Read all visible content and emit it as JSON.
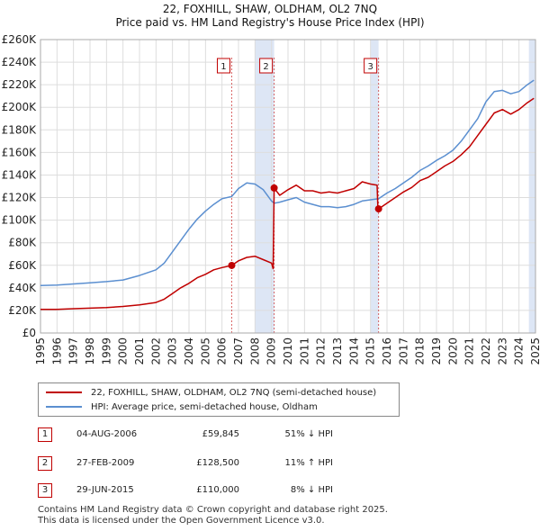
{
  "title_line1": "22, FOXHILL, SHAW, OLDHAM, OL2 7NQ",
  "title_line2": "Price paid vs. HM Land Registry's House Price Index (HPI)",
  "colors": {
    "red": "#c00000",
    "blue": "#5b8fd0",
    "shade": "#dde6f5",
    "grid": "#dddddd"
  },
  "chart_data": {
    "type": "line",
    "xlim": [
      1995,
      2025
    ],
    "ylim": [
      0,
      260000
    ],
    "y_ticks": [
      0,
      20000,
      40000,
      60000,
      80000,
      100000,
      120000,
      140000,
      160000,
      180000,
      200000,
      220000,
      240000,
      260000
    ],
    "y_tick_labels": [
      "£0",
      "£20K",
      "£40K",
      "£60K",
      "£80K",
      "£100K",
      "£120K",
      "£140K",
      "£160K",
      "£180K",
      "£200K",
      "£220K",
      "£240K",
      "£260K"
    ],
    "x_ticks": [
      "1995",
      "1996",
      "1997",
      "1998",
      "1999",
      "2000",
      "2001",
      "2002",
      "2003",
      "2004",
      "2005",
      "2006",
      "2007",
      "2008",
      "2009",
      "2010",
      "2011",
      "2012",
      "2013",
      "2014",
      "2015",
      "2016",
      "2017",
      "2018",
      "2019",
      "2020",
      "2021",
      "2022",
      "2023",
      "2024",
      "2025"
    ],
    "series": [
      {
        "name": "22, FOXHILL, SHAW, OLDHAM, OL2 7NQ (semi-detached house)",
        "color": "#c00000",
        "points": [
          [
            1995.0,
            21000
          ],
          [
            1996.0,
            21000
          ],
          [
            1997.0,
            21500
          ],
          [
            1998.0,
            22000
          ],
          [
            1999.0,
            22500
          ],
          [
            2000.0,
            23500
          ],
          [
            2001.0,
            25000
          ],
          [
            2002.0,
            27000
          ],
          [
            2002.5,
            30000
          ],
          [
            2003.0,
            35000
          ],
          [
            2003.5,
            40000
          ],
          [
            2004.0,
            44000
          ],
          [
            2004.5,
            49000
          ],
          [
            2005.0,
            52000
          ],
          [
            2005.5,
            56000
          ],
          [
            2006.0,
            58000
          ],
          [
            2006.59,
            59845
          ],
          [
            2007.0,
            64000
          ],
          [
            2007.5,
            67000
          ],
          [
            2008.0,
            68000
          ],
          [
            2008.5,
            65000
          ],
          [
            2009.0,
            62000
          ],
          [
            2009.1,
            57000
          ],
          [
            2009.16,
            128500
          ],
          [
            2009.5,
            122000
          ],
          [
            2010.0,
            127000
          ],
          [
            2010.5,
            131000
          ],
          [
            2011.0,
            126000
          ],
          [
            2011.5,
            126000
          ],
          [
            2012.0,
            124000
          ],
          [
            2012.5,
            125000
          ],
          [
            2013.0,
            124000
          ],
          [
            2013.5,
            126000
          ],
          [
            2014.0,
            128000
          ],
          [
            2014.5,
            134000
          ],
          [
            2015.0,
            132000
          ],
          [
            2015.4,
            131000
          ],
          [
            2015.45,
            110000
          ],
          [
            2015.49,
            110000
          ],
          [
            2016.0,
            115000
          ],
          [
            2016.5,
            120000
          ],
          [
            2017.0,
            125000
          ],
          [
            2017.5,
            129000
          ],
          [
            2018.0,
            135000
          ],
          [
            2018.5,
            138000
          ],
          [
            2019.0,
            143000
          ],
          [
            2019.5,
            148000
          ],
          [
            2020.0,
            152000
          ],
          [
            2020.5,
            158000
          ],
          [
            2021.0,
            165000
          ],
          [
            2021.5,
            175000
          ],
          [
            2022.0,
            185000
          ],
          [
            2022.5,
            195000
          ],
          [
            2023.0,
            198000
          ],
          [
            2023.5,
            194000
          ],
          [
            2024.0,
            198000
          ],
          [
            2024.5,
            204000
          ],
          [
            2024.9,
            208000
          ]
        ]
      },
      {
        "name": "HPI: Average price, semi-detached house, Oldham",
        "color": "#5b8fd0",
        "points": [
          [
            1995.0,
            42000
          ],
          [
            1996.0,
            42500
          ],
          [
            1997.0,
            43500
          ],
          [
            1998.0,
            44500
          ],
          [
            1999.0,
            45500
          ],
          [
            2000.0,
            47000
          ],
          [
            2001.0,
            51000
          ],
          [
            2002.0,
            56000
          ],
          [
            2002.5,
            62000
          ],
          [
            2003.0,
            72000
          ],
          [
            2003.5,
            82000
          ],
          [
            2004.0,
            92000
          ],
          [
            2004.5,
            101000
          ],
          [
            2005.0,
            108000
          ],
          [
            2005.5,
            114000
          ],
          [
            2006.0,
            119000
          ],
          [
            2006.59,
            121000
          ],
          [
            2007.0,
            128000
          ],
          [
            2007.5,
            133000
          ],
          [
            2008.0,
            132000
          ],
          [
            2008.5,
            127000
          ],
          [
            2009.0,
            117000
          ],
          [
            2009.16,
            115000
          ],
          [
            2009.5,
            116000
          ],
          [
            2010.0,
            118000
          ],
          [
            2010.5,
            120000
          ],
          [
            2011.0,
            116000
          ],
          [
            2011.5,
            114000
          ],
          [
            2012.0,
            112000
          ],
          [
            2012.5,
            112000
          ],
          [
            2013.0,
            111000
          ],
          [
            2013.5,
            112000
          ],
          [
            2014.0,
            114000
          ],
          [
            2014.5,
            117000
          ],
          [
            2015.0,
            118000
          ],
          [
            2015.49,
            119000
          ],
          [
            2016.0,
            124000
          ],
          [
            2016.5,
            128000
          ],
          [
            2017.0,
            133000
          ],
          [
            2017.5,
            138000
          ],
          [
            2018.0,
            144000
          ],
          [
            2018.5,
            148000
          ],
          [
            2019.0,
            153000
          ],
          [
            2019.5,
            157000
          ],
          [
            2020.0,
            162000
          ],
          [
            2020.5,
            170000
          ],
          [
            2021.0,
            180000
          ],
          [
            2021.5,
            190000
          ],
          [
            2022.0,
            205000
          ],
          [
            2022.5,
            214000
          ],
          [
            2023.0,
            215000
          ],
          [
            2023.5,
            212000
          ],
          [
            2024.0,
            214000
          ],
          [
            2024.5,
            220000
          ],
          [
            2024.9,
            224000
          ]
        ]
      }
    ],
    "markers": [
      {
        "label": "1",
        "x": 2006.59,
        "y": 59845
      },
      {
        "label": "2",
        "x": 2009.16,
        "y": 128500
      },
      {
        "label": "3",
        "x": 2015.49,
        "y": 110000
      }
    ],
    "shaded_ranges": [
      [
        2008.0,
        2009.16
      ],
      [
        2015.0,
        2015.49
      ],
      [
        2024.6,
        2025.0
      ]
    ]
  },
  "legend": [
    {
      "label": "22, FOXHILL, SHAW, OLDHAM, OL2 7NQ (semi-detached house)",
      "color": "#c00000"
    },
    {
      "label": "HPI: Average price, semi-detached house, Oldham",
      "color": "#5b8fd0"
    }
  ],
  "sales": [
    {
      "num": "1",
      "date": "04-AUG-2006",
      "price": "£59,845",
      "hpi": "51% ↓ HPI"
    },
    {
      "num": "2",
      "date": "27-FEB-2009",
      "price": "£128,500",
      "hpi": "11% ↑ HPI"
    },
    {
      "num": "3",
      "date": "29-JUN-2015",
      "price": "£110,000",
      "hpi": "8% ↓ HPI"
    }
  ],
  "footer_line1": "Contains HM Land Registry data © Crown copyright and database right 2025.",
  "footer_line2": "This data is licensed under the Open Government Licence v3.0."
}
